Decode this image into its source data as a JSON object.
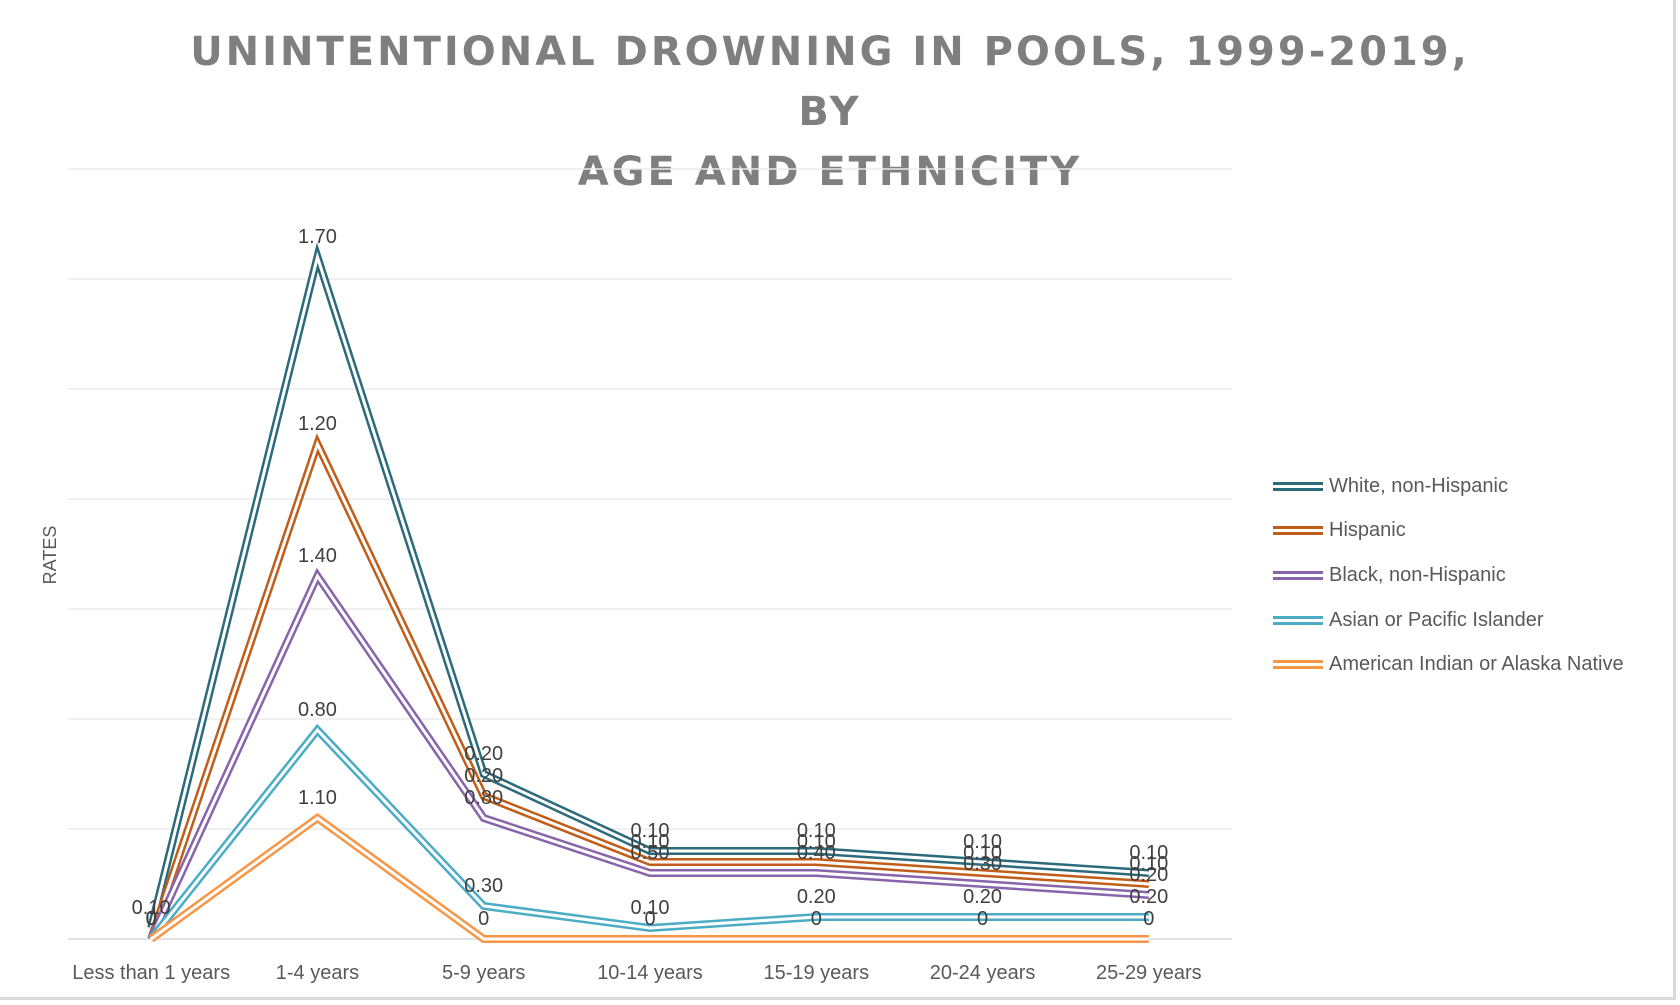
{
  "chart_data": {
    "type": "line",
    "stacked": true,
    "title": "UNINTENTIONAL DROWNING IN POOLS, 1999-2019, BY AGE AND ETHNICITY",
    "title_lines": [
      "UNINTENTIONAL DROWNING IN POOLS, 1999-2019, BY",
      "AGE AND ETHNICITY"
    ],
    "xlabel": "",
    "ylabel": "RATES",
    "ylim": [
      0,
      7
    ],
    "gridlines": true,
    "y_axis_tick_labels_visible": false,
    "legend_position": "right",
    "categories": [
      "Less than 1 years",
      "1-4 years",
      "5-9 years",
      "10-14 years",
      "15-19 years",
      "20-24 years",
      "25-29 years"
    ],
    "series": [
      {
        "name": "White, non-Hispanic",
        "color": "#2c6b7b",
        "values": [
          0.1,
          1.7,
          0.2,
          0.1,
          0.1,
          0.1,
          0.1
        ],
        "labels": [
          "0.10",
          "1.70",
          "0.20",
          "0.10",
          "0.10",
          "0.10",
          "0.10"
        ]
      },
      {
        "name": "Hispanic",
        "color": "#c05e19",
        "values": [
          0,
          1.2,
          0.2,
          0.1,
          0.1,
          0.1,
          0.1
        ],
        "labels": [
          "0",
          "1.20",
          "0.20",
          "0.10",
          "0.10",
          "0.10",
          "0.10"
        ]
      },
      {
        "name": "Black, non-Hispanic",
        "color": "#8864ac",
        "values": [
          0,
          1.4,
          0.8,
          0.5,
          0.4,
          0.3,
          0.2
        ],
        "labels": [
          "0",
          "1.40",
          "0.80",
          "0.50",
          "0.40",
          "0.30",
          "0.20"
        ]
      },
      {
        "name": "Asian or Pacific Islander",
        "color": "#4bacc6",
        "values": [
          0,
          0.8,
          0.3,
          0.1,
          0.2,
          0.2,
          0.2
        ],
        "labels": [
          "0",
          "0.80",
          "0.30",
          "0.10",
          "0.20",
          "0.20",
          "0.20"
        ]
      },
      {
        "name": "American Indian or Alaska Native",
        "color": "#f79646",
        "values": [
          0,
          1.1,
          0,
          0,
          0,
          0,
          0
        ],
        "labels": [
          "0",
          "1.10",
          "0",
          "0",
          "0",
          "0",
          "0"
        ]
      }
    ],
    "stack_order_bottom_to_top": [
      "American Indian or Alaska Native",
      "Asian or Pacific Islander",
      "Black, non-Hispanic",
      "Hispanic",
      "White, non-Hispanic"
    ]
  }
}
